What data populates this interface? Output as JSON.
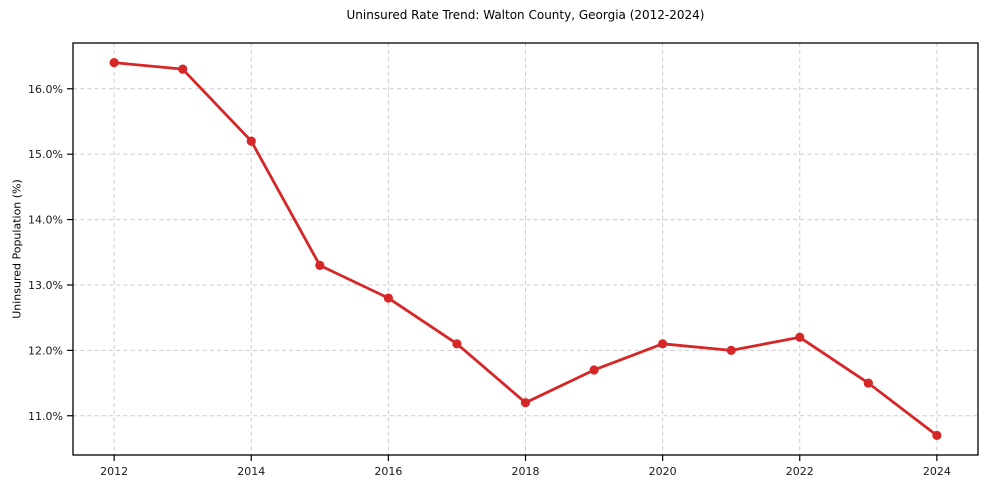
{
  "chart_data": {
    "type": "line",
    "title": "Uninsured Rate Trend: Walton County, Georgia (2012-2024)",
    "xlabel": "",
    "ylabel": "Uninsured Population (%)",
    "x": [
      2012,
      2013,
      2014,
      2015,
      2016,
      2017,
      2018,
      2019,
      2020,
      2021,
      2022,
      2023,
      2024
    ],
    "series": [
      {
        "name": "Uninsured Rate",
        "values": [
          16.4,
          16.3,
          15.2,
          13.3,
          12.8,
          12.1,
          11.2,
          11.7,
          12.1,
          12.0,
          12.2,
          11.5,
          10.7
        ]
      }
    ],
    "x_tick_values": [
      2012,
      2014,
      2016,
      2018,
      2020,
      2022,
      2024
    ],
    "x_tick_labels": [
      "2012",
      "2014",
      "2016",
      "2018",
      "2020",
      "2022",
      "2024"
    ],
    "y_tick_values": [
      11,
      12,
      13,
      14,
      15,
      16
    ],
    "y_tick_labels": [
      "11.0%",
      "12.0%",
      "13.0%",
      "14.0%",
      "15.0%",
      "16.0%"
    ],
    "xlim": [
      2011.4,
      2024.6
    ],
    "ylim": [
      10.4,
      16.7
    ],
    "grid": true,
    "legend": "none",
    "colors": {
      "line": "#d62728",
      "marker": "#d62728",
      "grid": "#cccccc",
      "frame": "#000000",
      "tick_text": "#1a1a1a",
      "background": "#ffffff"
    }
  }
}
